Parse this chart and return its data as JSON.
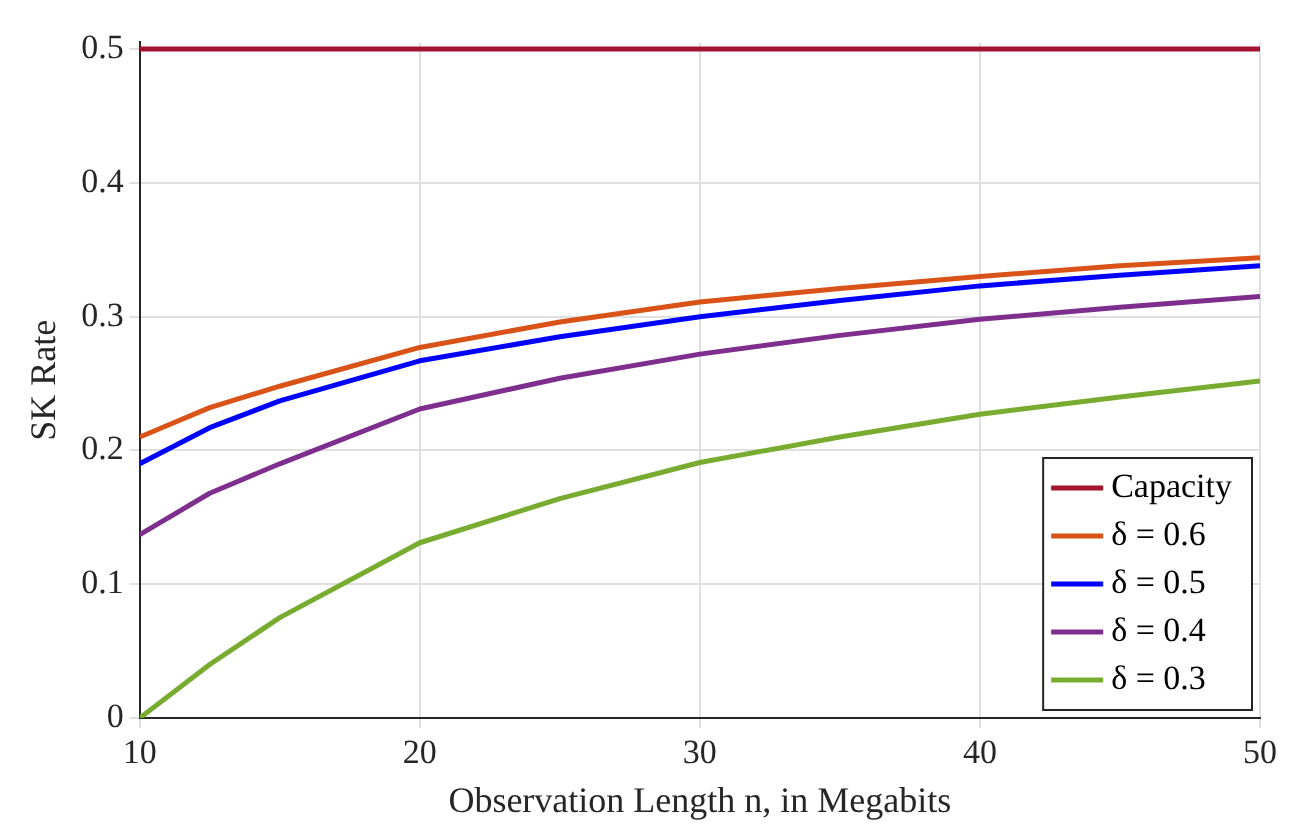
{
  "chart_data": {
    "type": "line",
    "xlabel": "Observation Length n, in Megabits",
    "ylabel": "SK Rate",
    "x": [
      10,
      12.5,
      15,
      20,
      25,
      30,
      35,
      40,
      45,
      50
    ],
    "series": [
      {
        "name": "Capacity",
        "color": "#a2142f",
        "values": [
          0.5,
          0.5,
          0.5,
          0.5,
          0.5,
          0.5,
          0.5,
          0.5,
          0.5,
          0.5
        ]
      },
      {
        "name": "δ = 0.6",
        "color": "#d95319",
        "values": [
          0.21,
          0.232,
          0.248,
          0.277,
          0.296,
          0.311,
          0.321,
          0.33,
          0.338,
          0.344
        ]
      },
      {
        "name": "δ = 0.5",
        "color": "#0000ff",
        "values": [
          0.19,
          0.217,
          0.237,
          0.267,
          0.285,
          0.3,
          0.312,
          0.323,
          0.331,
          0.338
        ]
      },
      {
        "name": "δ = 0.4",
        "color": "#7e2f8e",
        "values": [
          0.137,
          0.168,
          0.19,
          0.231,
          0.254,
          0.272,
          0.286,
          0.298,
          0.307,
          0.315
        ]
      },
      {
        "name": "δ = 0.3",
        "color": "#77ac30",
        "values": [
          0,
          0.04,
          0.075,
          0.131,
          0.164,
          0.191,
          0.21,
          0.227,
          0.24,
          0.252
        ]
      }
    ],
    "xlim": [
      10,
      50
    ],
    "xticks": [
      10,
      20,
      30,
      40,
      50
    ],
    "ylim": [
      0,
      0.505
    ],
    "yticks": [
      0,
      0.1,
      0.2,
      0.3,
      0.4,
      0.5
    ],
    "grid": true,
    "legend": "bottom right",
    "marker": "none",
    "line_style": "solid"
  }
}
